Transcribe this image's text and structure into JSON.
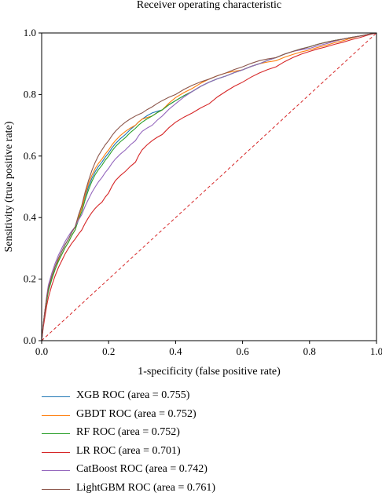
{
  "chart_data": {
    "type": "line",
    "title": "Receiver operating characteristic",
    "xlabel": "1-specificity (false positive rate)",
    "ylabel": "Sensitivity (true positive rate)",
    "xlim": [
      0,
      1
    ],
    "ylim": [
      0,
      1
    ],
    "x_ticks": [
      "0.0",
      "0.2",
      "0.4",
      "0.6",
      "0.8",
      "1.0"
    ],
    "y_ticks": [
      "0.0",
      "0.2",
      "0.4",
      "0.6",
      "0.8",
      "1.0"
    ],
    "grid": false,
    "legend_position": "below",
    "series": [
      {
        "name": "XGB ROC (area = 0.755)",
        "color": "#1f77b4",
        "x": [
          0,
          0.01,
          0.02,
          0.04,
          0.06,
          0.08,
          0.1,
          0.12,
          0.14,
          0.16,
          0.18,
          0.2,
          0.22,
          0.25,
          0.28,
          0.3,
          0.33,
          0.36,
          0.4,
          0.45,
          0.5,
          0.55,
          0.6,
          0.65,
          0.7,
          0.75,
          0.8,
          0.85,
          0.9,
          0.95,
          1.0
        ],
        "y": [
          0,
          0.1,
          0.17,
          0.24,
          0.29,
          0.33,
          0.37,
          0.43,
          0.5,
          0.55,
          0.58,
          0.61,
          0.64,
          0.67,
          0.7,
          0.72,
          0.74,
          0.75,
          0.78,
          0.81,
          0.84,
          0.86,
          0.88,
          0.9,
          0.92,
          0.94,
          0.955,
          0.97,
          0.98,
          0.99,
          1.0
        ]
      },
      {
        "name": "GBDT ROC (area = 0.752)",
        "color": "#ff7f0e",
        "x": [
          0,
          0.01,
          0.02,
          0.04,
          0.06,
          0.08,
          0.1,
          0.12,
          0.14,
          0.16,
          0.18,
          0.2,
          0.22,
          0.25,
          0.28,
          0.3,
          0.33,
          0.36,
          0.4,
          0.45,
          0.5,
          0.55,
          0.6,
          0.65,
          0.7,
          0.75,
          0.8,
          0.85,
          0.9,
          0.95,
          1.0
        ],
        "y": [
          0,
          0.1,
          0.17,
          0.24,
          0.28,
          0.32,
          0.36,
          0.43,
          0.51,
          0.56,
          0.59,
          0.62,
          0.65,
          0.68,
          0.7,
          0.72,
          0.73,
          0.75,
          0.79,
          0.82,
          0.85,
          0.87,
          0.88,
          0.9,
          0.91,
          0.93,
          0.945,
          0.96,
          0.975,
          0.99,
          1.0
        ]
      },
      {
        "name": "RF ROC (area = 0.752)",
        "color": "#2ca02c",
        "x": [
          0,
          0.01,
          0.02,
          0.04,
          0.06,
          0.08,
          0.1,
          0.12,
          0.14,
          0.16,
          0.18,
          0.2,
          0.22,
          0.25,
          0.28,
          0.3,
          0.33,
          0.36,
          0.4,
          0.45,
          0.5,
          0.55,
          0.6,
          0.65,
          0.7,
          0.75,
          0.8,
          0.85,
          0.9,
          0.95,
          1.0
        ],
        "y": [
          0,
          0.09,
          0.16,
          0.23,
          0.28,
          0.32,
          0.36,
          0.42,
          0.49,
          0.54,
          0.57,
          0.6,
          0.63,
          0.66,
          0.69,
          0.71,
          0.73,
          0.75,
          0.78,
          0.81,
          0.84,
          0.86,
          0.88,
          0.9,
          0.92,
          0.94,
          0.955,
          0.97,
          0.98,
          0.99,
          1.0
        ]
      },
      {
        "name": "LR ROC (area = 0.701)",
        "color": "#d62728",
        "x": [
          0,
          0.01,
          0.02,
          0.04,
          0.06,
          0.08,
          0.1,
          0.12,
          0.14,
          0.16,
          0.18,
          0.2,
          0.22,
          0.25,
          0.28,
          0.3,
          0.33,
          0.36,
          0.4,
          0.45,
          0.5,
          0.55,
          0.6,
          0.65,
          0.7,
          0.75,
          0.8,
          0.85,
          0.9,
          0.95,
          1.0
        ],
        "y": [
          0,
          0.08,
          0.14,
          0.21,
          0.26,
          0.3,
          0.33,
          0.36,
          0.4,
          0.43,
          0.45,
          0.48,
          0.52,
          0.55,
          0.58,
          0.62,
          0.65,
          0.67,
          0.71,
          0.74,
          0.77,
          0.81,
          0.84,
          0.87,
          0.89,
          0.92,
          0.94,
          0.955,
          0.97,
          0.985,
          1.0
        ]
      },
      {
        "name": "CatBoost ROC (area = 0.742)",
        "color": "#9467bd",
        "x": [
          0,
          0.01,
          0.02,
          0.04,
          0.06,
          0.08,
          0.1,
          0.12,
          0.14,
          0.16,
          0.18,
          0.2,
          0.22,
          0.25,
          0.28,
          0.3,
          0.33,
          0.36,
          0.4,
          0.45,
          0.5,
          0.55,
          0.6,
          0.65,
          0.7,
          0.75,
          0.8,
          0.85,
          0.9,
          0.95,
          1.0
        ],
        "y": [
          0,
          0.1,
          0.18,
          0.25,
          0.3,
          0.34,
          0.37,
          0.41,
          0.46,
          0.5,
          0.53,
          0.56,
          0.59,
          0.62,
          0.65,
          0.68,
          0.7,
          0.73,
          0.77,
          0.81,
          0.84,
          0.86,
          0.88,
          0.9,
          0.92,
          0.94,
          0.95,
          0.965,
          0.98,
          0.99,
          1.0
        ]
      },
      {
        "name": "LightGBM ROC (area = 0.761)",
        "color": "#8c564b",
        "x": [
          0,
          0.01,
          0.02,
          0.04,
          0.06,
          0.08,
          0.1,
          0.12,
          0.14,
          0.16,
          0.18,
          0.2,
          0.22,
          0.25,
          0.28,
          0.3,
          0.33,
          0.36,
          0.4,
          0.45,
          0.5,
          0.55,
          0.6,
          0.65,
          0.7,
          0.75,
          0.8,
          0.85,
          0.9,
          0.95,
          1.0
        ],
        "y": [
          0,
          0.1,
          0.17,
          0.24,
          0.29,
          0.33,
          0.37,
          0.44,
          0.52,
          0.58,
          0.62,
          0.65,
          0.68,
          0.71,
          0.73,
          0.74,
          0.76,
          0.78,
          0.8,
          0.83,
          0.85,
          0.87,
          0.89,
          0.91,
          0.92,
          0.94,
          0.955,
          0.97,
          0.98,
          0.99,
          1.0
        ]
      }
    ],
    "reference_line": {
      "x": [
        0,
        1
      ],
      "y": [
        0,
        1
      ],
      "color": "#d62728",
      "style": "dashed"
    }
  }
}
